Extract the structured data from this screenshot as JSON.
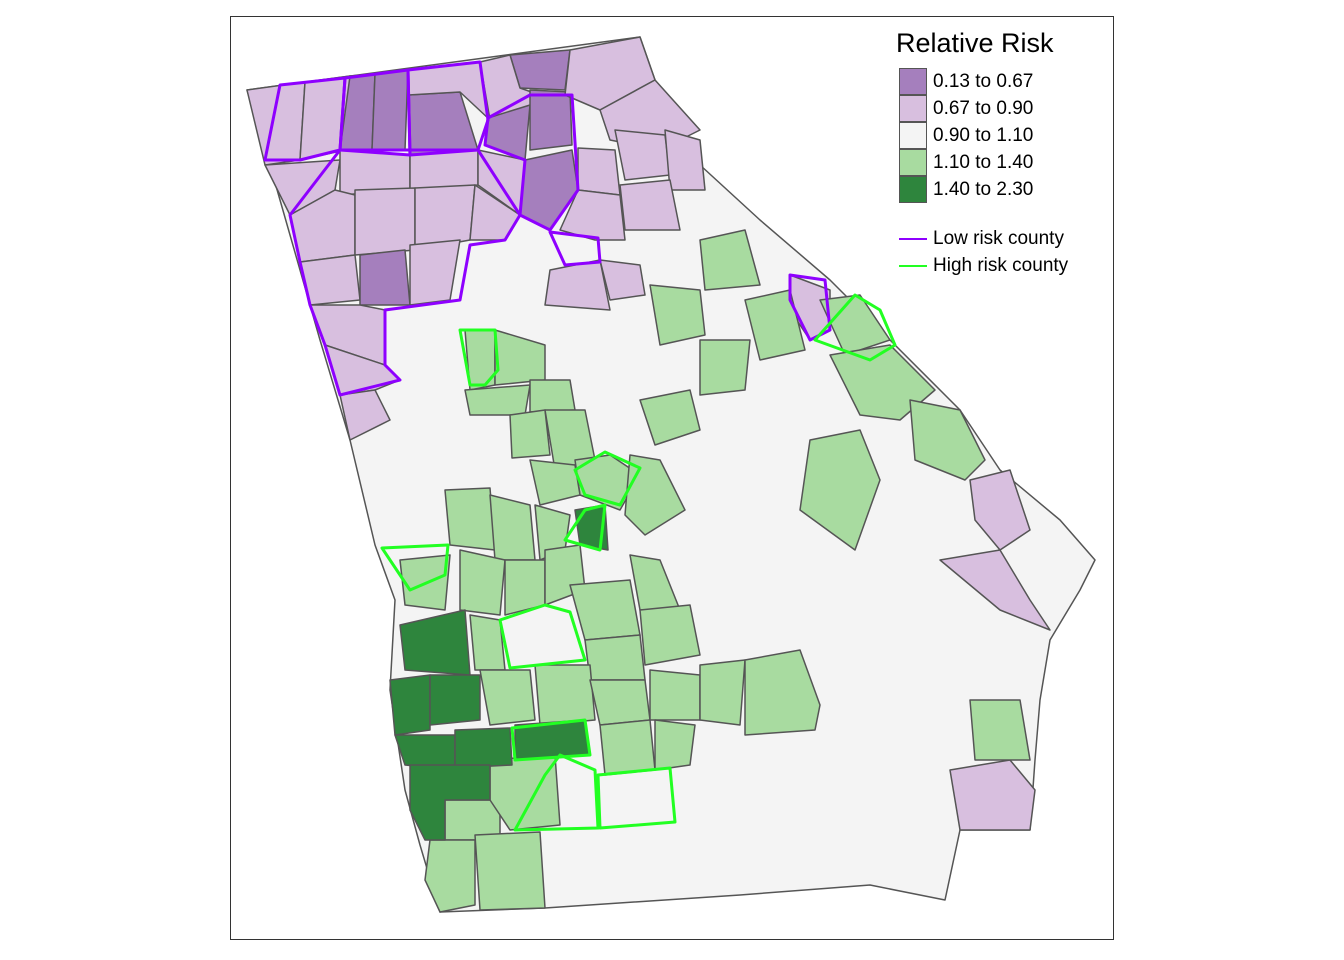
{
  "legend": {
    "title": "Relative Risk",
    "classes": [
      {
        "label": "0.13 to 0.67",
        "color": "#a57fbd"
      },
      {
        "label": "0.67 to 0.90",
        "color": "#d8bfdf"
      },
      {
        "label": "0.90 to 1.10",
        "color": "#f4f4f4"
      },
      {
        "label": "1.10 to 1.40",
        "color": "#a8dba0"
      },
      {
        "label": "1.40 to 2.30",
        "color": "#2e853d"
      }
    ],
    "lines": [
      {
        "label": "Low risk county",
        "color": "#8e00ff"
      },
      {
        "label": "High risk county",
        "color": "#22ff22"
      }
    ]
  }
}
